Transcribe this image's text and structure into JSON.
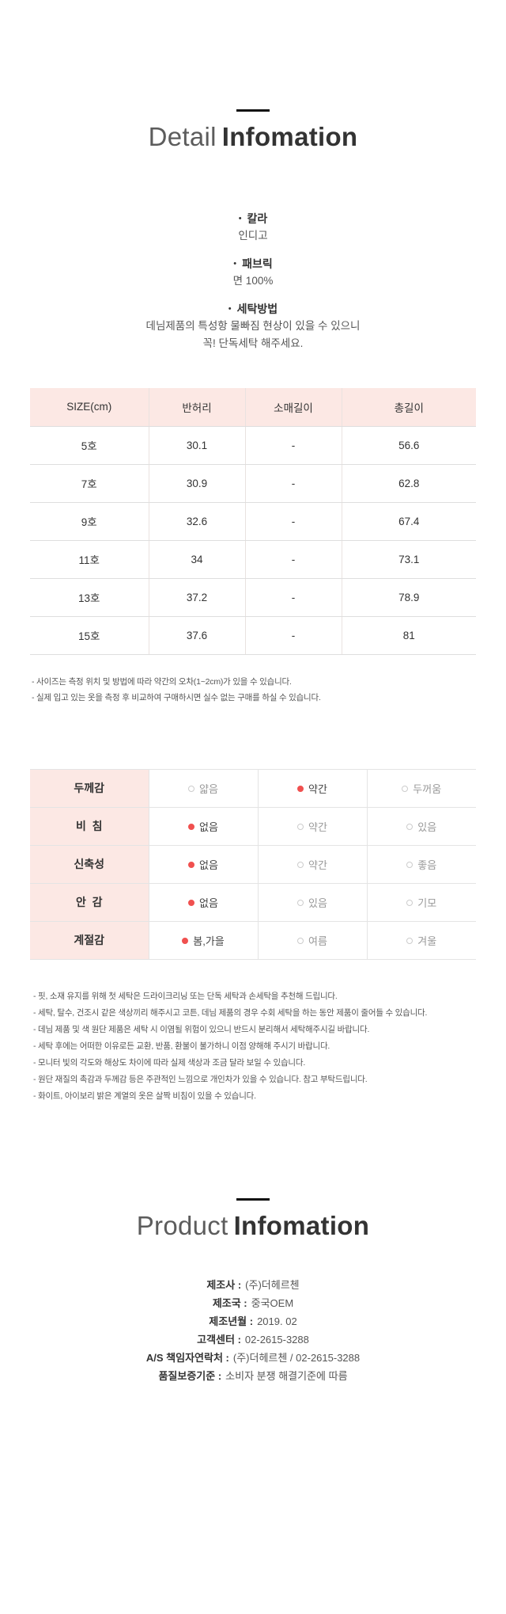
{
  "detail_section": {
    "title_light": "Detail",
    "title_bold": "Infomation",
    "bullet": "•",
    "attributes": [
      {
        "label": "칼라",
        "values": [
          "인디고"
        ]
      },
      {
        "label": "패브릭",
        "values": [
          "면 100%"
        ]
      },
      {
        "label": "세탁방법",
        "values": [
          "데님제품의 특성항 물빠짐 현상이 있을 수 있으니",
          "꼭! 단독세탁 해주세요."
        ]
      }
    ]
  },
  "size_table": {
    "headers": [
      "SIZE(cm)",
      "반허리",
      "소매길이",
      "총길이"
    ],
    "rows": [
      [
        "5호",
        "30.1",
        "-",
        "56.6"
      ],
      [
        "7호",
        "30.9",
        "-",
        "62.8"
      ],
      [
        "9호",
        "32.6",
        "-",
        "67.4"
      ],
      [
        "11호",
        "34",
        "-",
        "73.1"
      ],
      [
        "13호",
        "37.2",
        "-",
        "78.9"
      ],
      [
        "15호",
        "37.6",
        "-",
        "81"
      ]
    ],
    "notes": [
      "- 사이즈는 측정 위치 및 방법에 따라 약간의 오차(1~2cm)가 있을 수 있습니다.",
      "- 실제 입고 있는 옷을 측정 후 비교하여 구매하시면 실수 없는 구매를 하실 수 있습니다."
    ]
  },
  "feature_table": {
    "rows": [
      {
        "label": "두께감",
        "options": [
          "얇음",
          "약간",
          "두꺼움"
        ],
        "selected": 1
      },
      {
        "label": "비  침",
        "options": [
          "없음",
          "약간",
          "있음"
        ],
        "selected": 0
      },
      {
        "label": "신축성",
        "options": [
          "없음",
          "약간",
          "좋음"
        ],
        "selected": 0
      },
      {
        "label": "안  감",
        "options": [
          "없음",
          "있음",
          "기모"
        ],
        "selected": 0
      },
      {
        "label": "계절감",
        "options": [
          "봄,가을",
          "여름",
          "겨울"
        ],
        "selected": 0
      }
    ],
    "notes": [
      "- 핏, 소재 유지를 위해 첫 세탁은 드라이크리닝 또는 단독 세탁과 손세탁을 추천해 드립니다.",
      "- 세탁, 탈수, 건조시 같은 색상끼리 해주시고 코튼, 데님 제품의 경우 수회 세탁을 하는 동안 제품이 줄어들 수 있습니다.",
      "- 데님 제품 및 색 원단 제품은 세탁 시 이염될 위험이 있으니 반드시 분리해서 세탁해주시길 바랍니다.",
      "- 세탁 후에는 어떠한 이유로든 교환, 반품, 환불이 불가하니 이점 양해해 주시기 바랍니다.",
      "- 모니터 빛의 각도와 해상도 차이에 따라 실제 색상과 조금 달라 보일 수 있습니다.",
      "- 원단 재질의 촉감과 두께감 등은 주관적인 느낌으로 개인차가 있을 수 있습니다. 참고 부탁드립니다.",
      "- 화이트, 아이보리 밝은 계열의 옷은 살짝 비침이 있을 수 있습니다."
    ]
  },
  "product_section": {
    "title_light": "Product",
    "title_bold": "Infomation",
    "info": [
      {
        "label": "제조사 :",
        "value": "(주)더헤르첸"
      },
      {
        "label": "제조국 :",
        "value": "중국OEM"
      },
      {
        "label": "제조년월 :",
        "value": "2019. 02"
      },
      {
        "label": "고객센터 :",
        "value": "02-2615-3288"
      },
      {
        "label": "A/S 책임자연락처 :",
        "value": "(주)더헤르첸 / 02-2615-3288"
      },
      {
        "label": "품질보증기준 :",
        "value": "소비자 분쟁 해결기준에 따름"
      }
    ]
  },
  "colors": {
    "accent_pink": "#fce8e4",
    "radio_selected": "#f0504f",
    "divider_black": "#111111"
  }
}
